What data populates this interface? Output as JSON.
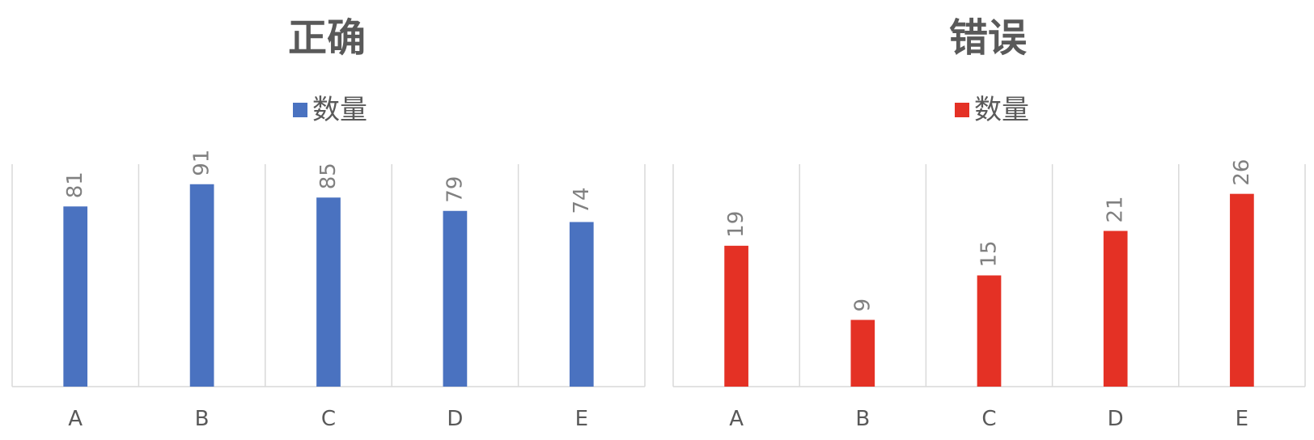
{
  "chart_data": [
    {
      "type": "bar",
      "title": "正确",
      "categories": [
        "A",
        "B",
        "C",
        "D",
        "E"
      ],
      "series": [
        {
          "name": "数量",
          "values": [
            81,
            91,
            85,
            79,
            74
          ]
        }
      ],
      "ylim": [
        0,
        100
      ],
      "grid": "vertical",
      "legend": "top-center",
      "data_labels": true,
      "color": "#4a72c0"
    },
    {
      "type": "bar",
      "title": "错误",
      "categories": [
        "A",
        "B",
        "C",
        "D",
        "E"
      ],
      "series": [
        {
          "name": "数量",
          "values": [
            19,
            9,
            15,
            21,
            26
          ]
        }
      ],
      "ylim": [
        0,
        30
      ],
      "grid": "vertical",
      "legend": "top-center",
      "data_labels": true,
      "color": "#e43125"
    }
  ]
}
